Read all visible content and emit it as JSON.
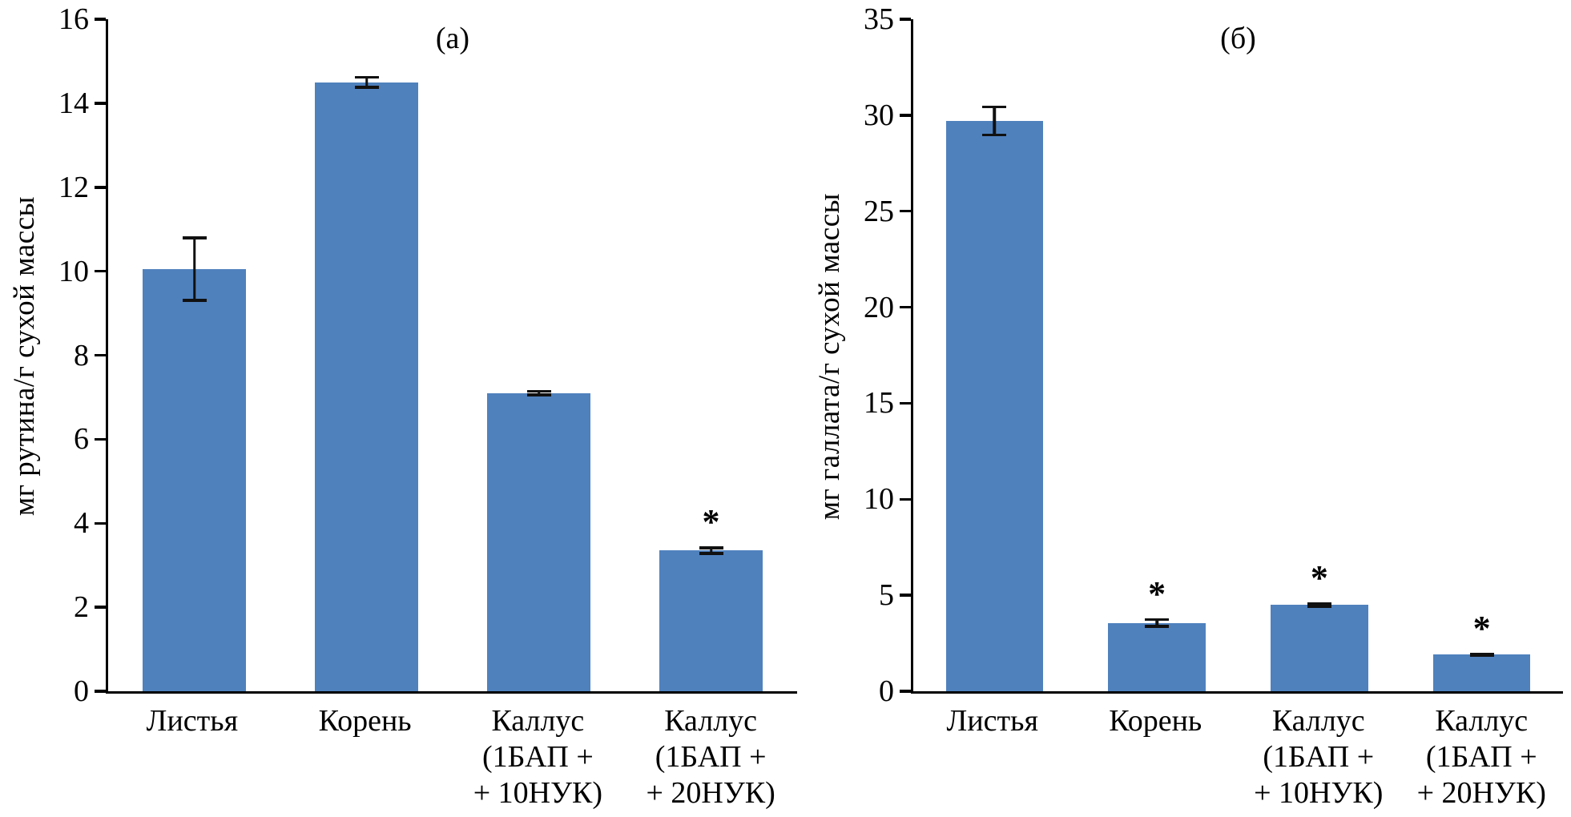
{
  "figure": {
    "background": "#ffffff",
    "bar_color": "#4f81bd",
    "error_bar_color": "#111111",
    "axis_color": "#000000",
    "significance_marker": "*"
  },
  "chart_data": [
    {
      "type": "bar",
      "panel_label": "(а)",
      "ylabel": "мг рутина/г сухой массы",
      "xlabel": "",
      "categories": [
        [
          "Листья"
        ],
        [
          "Корень"
        ],
        [
          "Каллус",
          "(1БАП +",
          "+ 10НУК)"
        ],
        [
          "Каллус",
          "(1БАП +",
          "+ 20НУК)"
        ]
      ],
      "values": [
        10.05,
        14.5,
        7.1,
        3.35
      ],
      "errors": [
        0.78,
        0.15,
        0.08,
        0.1
      ],
      "significance": [
        false,
        false,
        false,
        true
      ],
      "ylim": [
        0,
        16
      ],
      "ytick_step": 2,
      "grid": false,
      "legend": "none"
    },
    {
      "type": "bar",
      "panel_label": "(б)",
      "ylabel": "мг галлата/г сухой массы",
      "xlabel": "",
      "categories": [
        [
          "Листья"
        ],
        [
          "Корень"
        ],
        [
          "Каллус",
          "(1БАП +",
          "+ 10НУК)"
        ],
        [
          "Каллус",
          "(1БАП +",
          "+ 20НУК)"
        ]
      ],
      "values": [
        29.7,
        3.55,
        4.5,
        1.9
      ],
      "errors": [
        0.8,
        0.25,
        0.15,
        0.1
      ],
      "significance": [
        false,
        true,
        true,
        true
      ],
      "ylim": [
        0,
        35
      ],
      "ytick_step": 5,
      "grid": false,
      "legend": "none"
    }
  ]
}
